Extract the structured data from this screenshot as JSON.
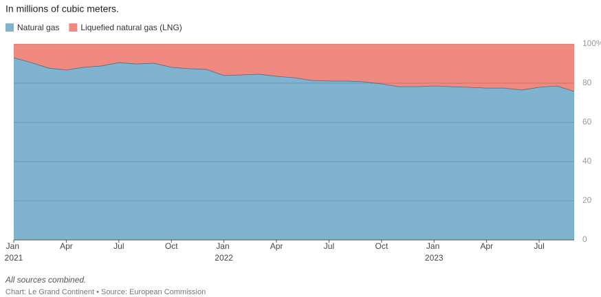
{
  "chart_data": {
    "type": "stacked_area_percent",
    "subtitle": "In millions of cubic meters.",
    "notes": "All sources combined.",
    "source": "Chart: Le Grand Continent • Source: European Commission",
    "categories": [
      "Jan 2021",
      null,
      null,
      "Apr",
      null,
      null,
      "Jul",
      null,
      null,
      "Oct",
      null,
      null,
      "Jan 2022",
      null,
      null,
      "Apr",
      null,
      null,
      "Jul",
      null,
      null,
      "Oct",
      null,
      null,
      "Jan 2023",
      null,
      null,
      "Apr",
      null,
      null,
      "Jul",
      null,
      null
    ],
    "series": [
      {
        "name": "Natural gas",
        "color": "#7fb3d0",
        "values": [
          93.0,
          90.5,
          87.7,
          86.7,
          88.1,
          88.8,
          90.5,
          89.8,
          90.2,
          88.1,
          87.4,
          87.0,
          83.9,
          84.2,
          84.6,
          83.5,
          82.8,
          81.4,
          81.1,
          81.1,
          80.7,
          79.6,
          78.2,
          78.2,
          78.6,
          78.2,
          77.9,
          77.5,
          77.5,
          76.5,
          77.9,
          78.6,
          75.8
        ]
      },
      {
        "name": "Liquefied natural gas (LNG)",
        "color": "#f08a80",
        "values": [
          7.0,
          9.5,
          12.3,
          13.3,
          11.9,
          11.2,
          9.5,
          10.2,
          9.8,
          11.9,
          12.6,
          13.0,
          16.1,
          15.8,
          15.4,
          16.5,
          17.2,
          18.6,
          18.9,
          18.9,
          19.3,
          20.4,
          21.8,
          21.8,
          21.4,
          21.8,
          22.1,
          22.5,
          22.5,
          23.5,
          22.1,
          21.4,
          24.2
        ]
      }
    ],
    "ylim": [
      0,
      100
    ],
    "yticks": [
      0,
      20,
      40,
      60,
      80,
      {
        "value": 100,
        "label": "100%"
      }
    ],
    "grid": true,
    "legend": "top-left"
  }
}
